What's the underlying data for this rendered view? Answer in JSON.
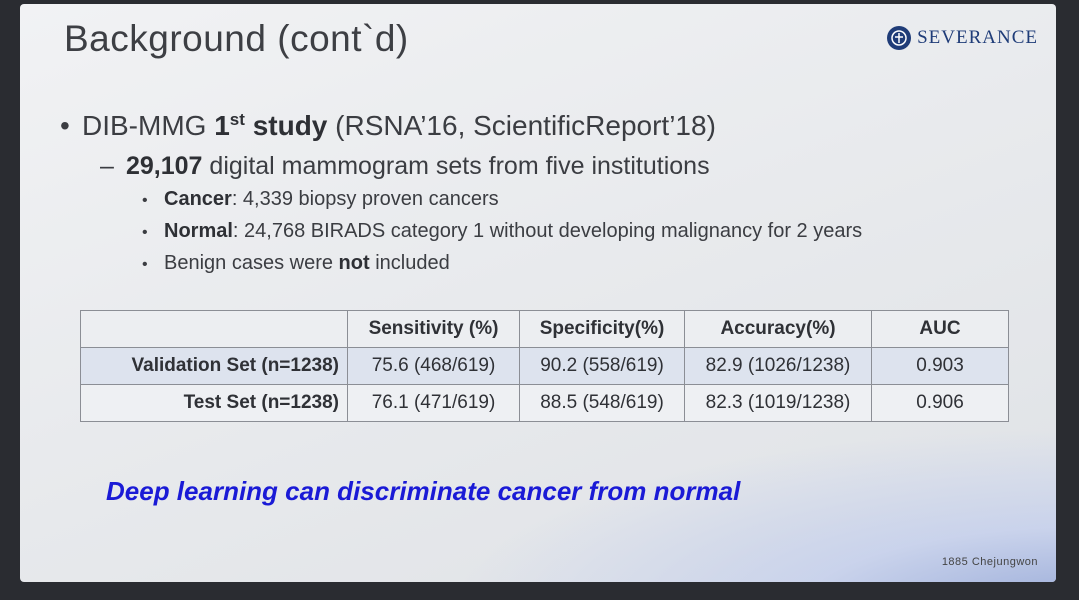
{
  "title": "Background (cont`d)",
  "logo": {
    "name": "SEVERANCE"
  },
  "bullet1": {
    "prefix": "DIB-MMG ",
    "bold_num": "1",
    "sup": "st",
    "bold_word": " study",
    "rest": " (RSNA’16, ScientificReport’18)"
  },
  "bullet2": {
    "bold": "29,107",
    "rest": " digital mammogram sets from five institutions"
  },
  "sub_items": [
    {
      "bold": "Cancer",
      "rest": ": 4,339 biopsy proven cancers"
    },
    {
      "bold": "Normal",
      "rest": ": 24,768 BIRADS category 1 without developing malignancy for 2 years"
    },
    {
      "pre": "Benign cases were ",
      "bold": "not",
      "rest": " included"
    }
  ],
  "table": {
    "headers": [
      "",
      "Sensitivity (%)",
      "Specificity(%)",
      "Accuracy(%)",
      "AUC"
    ],
    "rows": [
      {
        "label": "Validation Set (n=1238)",
        "sens": "75.6 (468/619)",
        "spec": "90.2 (558/619)",
        "acc": "82.9 (1026/1238)",
        "auc": "0.903"
      },
      {
        "label": "Test Set (n=1238)",
        "sens": "76.1 (471/619)",
        "spec": "88.5 (548/619)",
        "acc": "82.3 (1019/1238)",
        "auc": "0.906"
      }
    ]
  },
  "conclusion": "Deep learning can discriminate cancer from normal",
  "footer": "1885 Chejungwon",
  "colors": {
    "conclusion": "#1a1ad6",
    "brand": "#1f3c78",
    "highlight_row": "#dde3ee"
  }
}
